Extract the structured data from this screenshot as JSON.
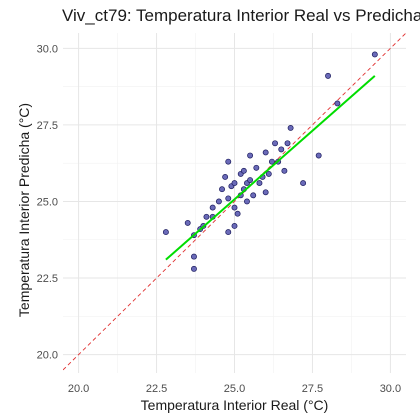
{
  "chart_data": {
    "type": "scatter",
    "title": "Viv_ct79: Temperatura Interior Real vs Predicha",
    "xlabel": "Temperatura Interior Real (°C)",
    "ylabel": "Temperatura Interior Predicha (°C)",
    "xlim": [
      19.5,
      30.5
    ],
    "ylim": [
      19.4,
      30.5
    ],
    "xticks": [
      20.0,
      22.5,
      25.0,
      27.5,
      30.0
    ],
    "yticks": [
      20.0,
      22.5,
      25.0,
      27.5,
      30.0
    ],
    "xtick_labels": [
      "20.0",
      "22.5",
      "25.0",
      "27.5",
      "30.0"
    ],
    "ytick_labels": [
      "20.0",
      "22.5",
      "25.0",
      "27.5",
      "30.0"
    ],
    "grid": true,
    "points": [
      {
        "x": 22.8,
        "y": 24.0
      },
      {
        "x": 23.5,
        "y": 24.3
      },
      {
        "x": 23.7,
        "y": 23.9
      },
      {
        "x": 23.7,
        "y": 22.8
      },
      {
        "x": 23.7,
        "y": 23.2
      },
      {
        "x": 23.9,
        "y": 24.1
      },
      {
        "x": 24.0,
        "y": 24.2
      },
      {
        "x": 24.1,
        "y": 24.5
      },
      {
        "x": 24.3,
        "y": 24.8
      },
      {
        "x": 24.3,
        "y": 24.5
      },
      {
        "x": 24.5,
        "y": 25.0
      },
      {
        "x": 24.6,
        "y": 25.4
      },
      {
        "x": 24.7,
        "y": 25.8
      },
      {
        "x": 24.8,
        "y": 25.1
      },
      {
        "x": 24.8,
        "y": 26.3
      },
      {
        "x": 24.8,
        "y": 24.0
      },
      {
        "x": 24.9,
        "y": 25.5
      },
      {
        "x": 25.0,
        "y": 24.8
      },
      {
        "x": 25.0,
        "y": 25.6
      },
      {
        "x": 25.0,
        "y": 24.2
      },
      {
        "x": 25.1,
        "y": 24.6
      },
      {
        "x": 25.2,
        "y": 25.2
      },
      {
        "x": 25.2,
        "y": 25.9
      },
      {
        "x": 25.3,
        "y": 26.0
      },
      {
        "x": 25.3,
        "y": 25.4
      },
      {
        "x": 25.4,
        "y": 25.0
      },
      {
        "x": 25.4,
        "y": 25.6
      },
      {
        "x": 25.5,
        "y": 26.5
      },
      {
        "x": 25.5,
        "y": 25.7
      },
      {
        "x": 25.6,
        "y": 25.2
      },
      {
        "x": 25.7,
        "y": 26.1
      },
      {
        "x": 25.8,
        "y": 25.6
      },
      {
        "x": 25.9,
        "y": 25.8
      },
      {
        "x": 26.0,
        "y": 26.6
      },
      {
        "x": 26.0,
        "y": 25.3
      },
      {
        "x": 26.1,
        "y": 25.9
      },
      {
        "x": 26.2,
        "y": 26.3
      },
      {
        "x": 26.3,
        "y": 26.9
      },
      {
        "x": 26.4,
        "y": 26.3
      },
      {
        "x": 26.5,
        "y": 26.7
      },
      {
        "x": 26.6,
        "y": 26.0
      },
      {
        "x": 26.7,
        "y": 26.9
      },
      {
        "x": 26.8,
        "y": 27.4
      },
      {
        "x": 27.2,
        "y": 25.6
      },
      {
        "x": 27.7,
        "y": 26.5
      },
      {
        "x": 28.0,
        "y": 29.1
      },
      {
        "x": 28.3,
        "y": 28.2
      },
      {
        "x": 29.5,
        "y": 29.8
      }
    ],
    "fit_line": {
      "x": [
        22.8,
        29.5
      ],
      "y": [
        23.1,
        29.1
      ]
    },
    "reference_line": {
      "x": [
        19.5,
        30.5
      ],
      "y": [
        19.5,
        30.5
      ]
    },
    "colors": {
      "point_fill": "#6a6ab8",
      "point_stroke": "#1c1c5e",
      "fit_line": "#00dd00",
      "reference_line": "#e03030",
      "grid_major": "#e6e6e6",
      "grid_minor": "#f2f2f2"
    }
  }
}
